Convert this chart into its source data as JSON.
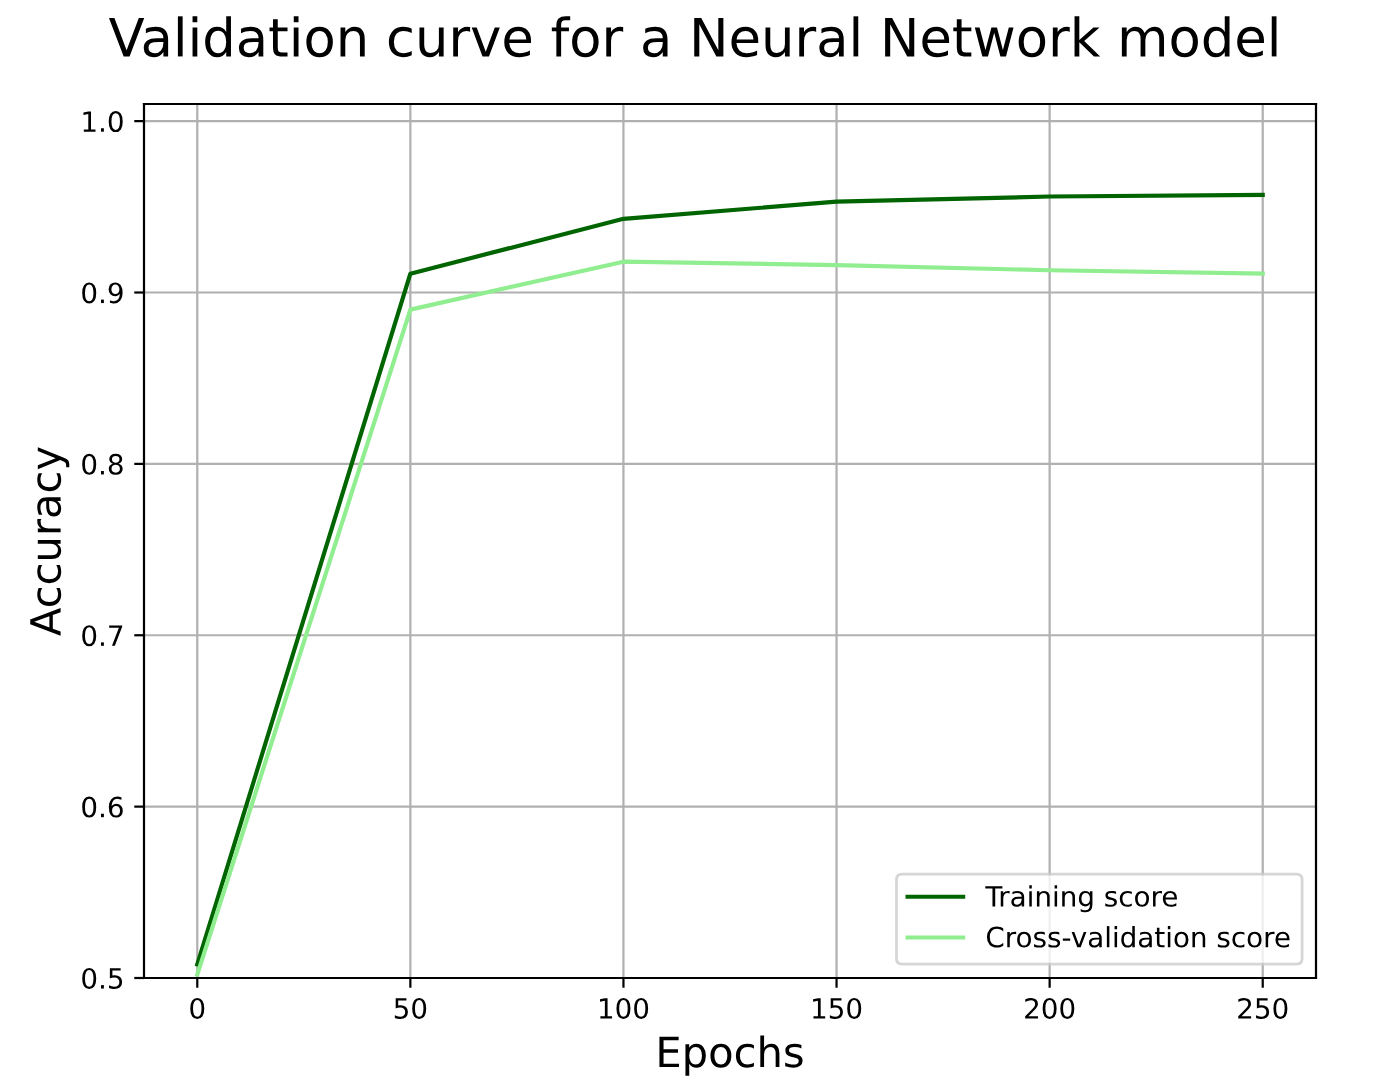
{
  "chart_data": {
    "type": "line",
    "title": "Validation curve for a Neural Network model",
    "xlabel": "Epochs",
    "ylabel": "Accuracy",
    "x": [
      0,
      50,
      100,
      150,
      200,
      250
    ],
    "series": [
      {
        "name": "Training score",
        "color": "#006400",
        "values": [
          0.508,
          0.911,
          0.943,
          0.953,
          0.956,
          0.957
        ]
      },
      {
        "name": "Cross-validation score",
        "color": "#90ee90",
        "values": [
          0.502,
          0.89,
          0.918,
          0.916,
          0.913,
          0.911
        ]
      }
    ],
    "xlim": [
      -12.5,
      262.5
    ],
    "xticks": [
      0,
      50,
      100,
      150,
      200,
      250
    ],
    "ylim": [
      0.5,
      1.01
    ],
    "yticks": [
      0.5,
      0.6,
      0.7,
      0.8,
      0.9,
      {
        "value": 1,
        "label": "1.0"
      }
    ],
    "grid": true,
    "legend": "bottom right",
    "marker": "none",
    "line_style": "solid"
  }
}
